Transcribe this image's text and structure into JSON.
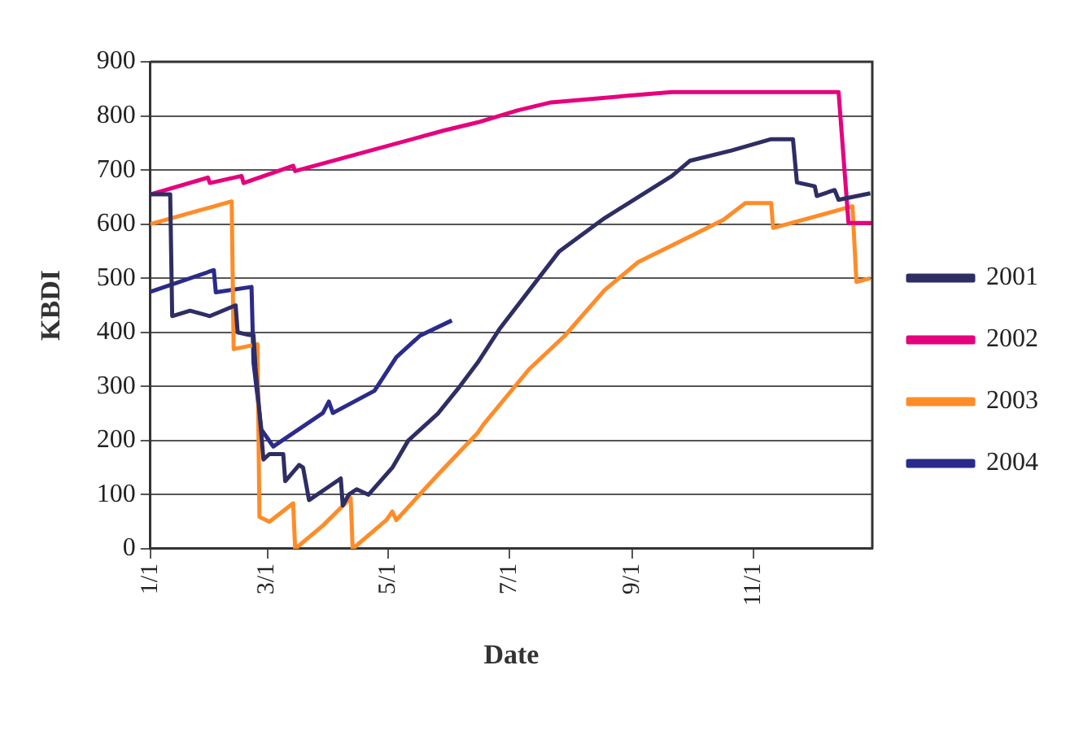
{
  "chart_data": {
    "type": "line",
    "xlabel": "Date",
    "ylabel": "KBDI",
    "xlim": [
      "--01-01",
      "--12-31"
    ],
    "xticks": [
      {
        "value": "--01-01",
        "label": "1/1"
      },
      {
        "value": "--03-01",
        "label": "3/1"
      },
      {
        "value": "--05-01",
        "label": "5/1"
      },
      {
        "value": "--07-01",
        "label": "7/1"
      },
      {
        "value": "--09-01",
        "label": "9/1"
      },
      {
        "value": "--11-01",
        "label": "11/1"
      }
    ],
    "ylim": [
      0,
      900
    ],
    "yticks": [
      0,
      100,
      200,
      300,
      400,
      500,
      600,
      700,
      800,
      900
    ],
    "grid": "y",
    "legend": "right",
    "marker": "none",
    "line_style": "solid",
    "series": [
      {
        "name": "2001",
        "color": "#2e2e64",
        "x": [
          "--01-01",
          "--01-11",
          "--01-12",
          "--01-21",
          "--01-31",
          "--02-13",
          "--02-14",
          "--02-20",
          "--02-22",
          "--02-23",
          "--02-26",
          "--02-27",
          "--03-02",
          "--03-09",
          "--03-10",
          "--03-17",
          "--03-19",
          "--03-22",
          "--04-01",
          "--04-07",
          "--04-08",
          "--04-11",
          "--04-15",
          "--04-21",
          "--05-03",
          "--05-11",
          "--05-26",
          "--06-06",
          "--06-15",
          "--06-26",
          "--07-26",
          "--08-18",
          "--09-21",
          "--09-30",
          "--10-21",
          "--11-10",
          "--11-21",
          "--11-23",
          "--12-02",
          "--12-03",
          "--12-12",
          "--12-14",
          "--12-30"
        ],
        "values": [
          655,
          655,
          430,
          440,
          430,
          450,
          400,
          395,
          395,
          335,
          210,
          165,
          175,
          175,
          125,
          155,
          150,
          90,
          115,
          130,
          80,
          100,
          110,
          100,
          150,
          200,
          250,
          300,
          344,
          406,
          549,
          611,
          689,
          717,
          736,
          757,
          757,
          677,
          670,
          652,
          663,
          645,
          657
        ]
      },
      {
        "name": "2002",
        "color": "#e6007e",
        "x": [
          "--01-01",
          "--01-30",
          "--01-31",
          "--02-16",
          "--02-17",
          "--03-14",
          "--03-15",
          "--05-29",
          "--06-15",
          "--07-05",
          "--07-22",
          "--09-01",
          "--09-21",
          "--12-14",
          "--12-19",
          "--12-31"
        ],
        "values": [
          655,
          686,
          676,
          689,
          676,
          708,
          698,
          773,
          788,
          810,
          825,
          838,
          844,
          844,
          602,
          602
        ]
      },
      {
        "name": "2003",
        "color": "#ff8c28",
        "x": [
          "--01-01",
          "--02-11",
          "--02-12",
          "--02-24",
          "--02-25",
          "--03-02",
          "--03-14",
          "--03-15",
          "--03-29",
          "--04-12",
          "--04-13",
          "--04-30",
          "--05-03",
          "--05-05",
          "--05-26",
          "--06-15",
          "--06-18",
          "--07-11",
          "--07-29",
          "--08-18",
          "--09-04",
          "--09-30",
          "--10-17",
          "--10-28",
          "--11-10",
          "--11-11",
          "--12-21",
          "--12-23",
          "--12-30"
        ],
        "values": [
          600,
          642,
          369,
          378,
          59,
          50,
          84,
          0,
          43,
          94,
          0,
          53,
          69,
          53,
          137,
          214,
          230,
          332,
          394,
          478,
          530,
          577,
          608,
          639,
          639,
          593,
          633,
          493,
          500
        ]
      },
      {
        "name": "2004",
        "color": "#2b2b8c",
        "x": [
          "--01-01",
          "--02-02",
          "--02-03",
          "--02-21",
          "--02-22",
          "--02-26",
          "--03-04",
          "--03-29",
          "--04-01",
          "--04-03",
          "--04-24",
          "--05-05",
          "--05-17",
          "--06-02"
        ],
        "values": [
          475,
          515,
          474,
          484,
          344,
          220,
          189,
          251,
          272,
          251,
          292,
          354,
          394,
          422
        ]
      }
    ]
  }
}
